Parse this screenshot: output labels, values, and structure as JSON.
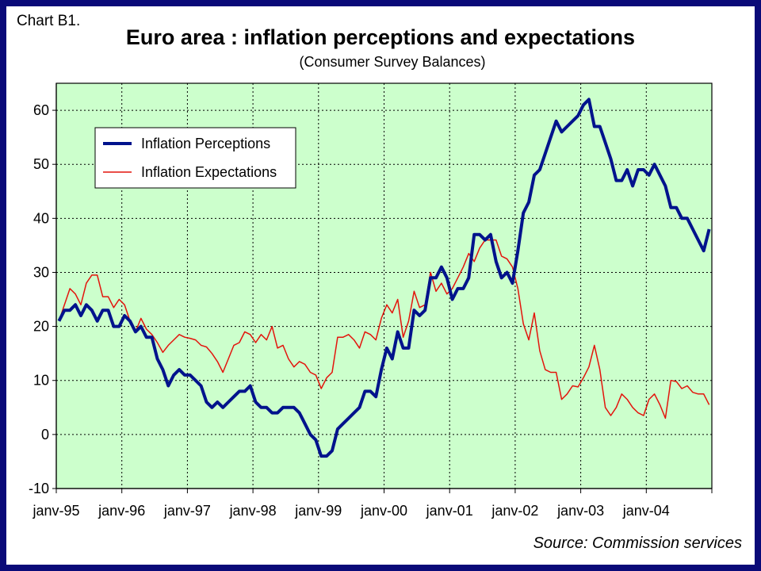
{
  "header": {
    "corner_label": "Chart B1.",
    "title": "Euro area : inflation perceptions and expectations",
    "subtitle": "(Consumer Survey Balances)"
  },
  "footer": {
    "source": "Source: Commission services"
  },
  "colors": {
    "frame": "#0a0a78",
    "plot_background": "#ccffcc",
    "perceptions": "#00138c",
    "expectations": "#e3140c"
  },
  "chart_data": {
    "type": "line",
    "x_start": "janv-95",
    "frequency": "monthly",
    "x_tick_labels": [
      "janv-95",
      "janv-96",
      "janv-97",
      "janv-98",
      "janv-99",
      "janv-00",
      "janv-01",
      "janv-02",
      "janv-03",
      "janv-04"
    ],
    "ylim": [
      -10,
      65
    ],
    "y_ticks": [
      -10,
      0,
      10,
      20,
      30,
      40,
      50,
      60
    ],
    "grid": true,
    "legend_position": "top-left",
    "series": [
      {
        "name": "Inflation Perceptions",
        "color": "#00138c",
        "values": [
          21,
          23,
          23,
          24,
          22,
          24,
          23,
          21,
          23,
          23,
          20,
          20,
          22,
          21,
          19,
          20,
          18,
          18,
          14,
          12,
          9,
          11,
          12,
          11,
          11,
          10,
          9,
          6,
          5,
          6,
          5,
          6,
          7,
          8,
          8,
          9,
          6,
          5,
          5,
          4,
          4,
          5,
          5,
          5,
          4,
          2,
          0,
          -1,
          -4,
          -4,
          -3,
          1,
          2,
          3,
          4,
          5,
          8,
          8,
          7,
          12,
          16,
          14,
          19,
          16,
          16,
          23,
          22,
          23,
          29,
          29,
          31,
          29,
          25,
          27,
          27,
          29,
          37,
          37,
          36,
          37,
          32,
          29,
          30,
          28,
          34,
          41,
          43,
          48,
          49,
          52,
          55,
          58,
          56,
          57,
          58,
          59,
          61,
          62,
          57,
          57,
          54,
          51,
          47,
          47,
          49,
          46,
          49,
          49,
          48,
          50,
          48,
          46,
          42,
          42,
          40,
          40,
          38,
          36,
          34,
          38
        ]
      },
      {
        "name": "Inflation Expectations",
        "color": "#e3140c",
        "values": [
          21,
          24,
          27,
          26,
          24,
          28,
          29.5,
          29.5,
          25.5,
          25.5,
          23.5,
          25,
          24,
          21,
          19,
          21.5,
          19.5,
          18.5,
          17,
          15.2,
          16.5,
          17.5,
          18.5,
          18,
          17.8,
          17.5,
          16.5,
          16.2,
          15,
          13.5,
          11.5,
          14,
          16.5,
          17,
          19,
          18.5,
          17,
          18.5,
          17.5,
          20,
          16,
          16.5,
          14,
          12.5,
          13.5,
          13,
          11.5,
          11,
          8.5,
          10.5,
          11.5,
          18,
          18,
          18.5,
          17.5,
          16,
          19,
          18.5,
          17.5,
          21.5,
          24,
          22.5,
          25,
          18,
          21,
          26.5,
          23.5,
          24,
          30,
          26.5,
          28,
          26,
          27,
          29,
          31,
          33.5,
          32,
          34.5,
          36,
          36,
          36,
          33,
          32.5,
          31,
          27,
          20.5,
          17.5,
          22.5,
          15.5,
          12,
          11.5,
          11.5,
          6.5,
          7.5,
          9,
          8.8,
          10.5,
          12.5,
          16.5,
          12,
          5,
          3.5,
          5,
          7.5,
          6.5,
          5,
          4,
          3.5,
          6.5,
          7.5,
          5.5,
          3,
          10,
          9.8,
          8.5,
          9,
          7.8,
          7.5,
          7.5,
          5.5
        ]
      }
    ]
  }
}
